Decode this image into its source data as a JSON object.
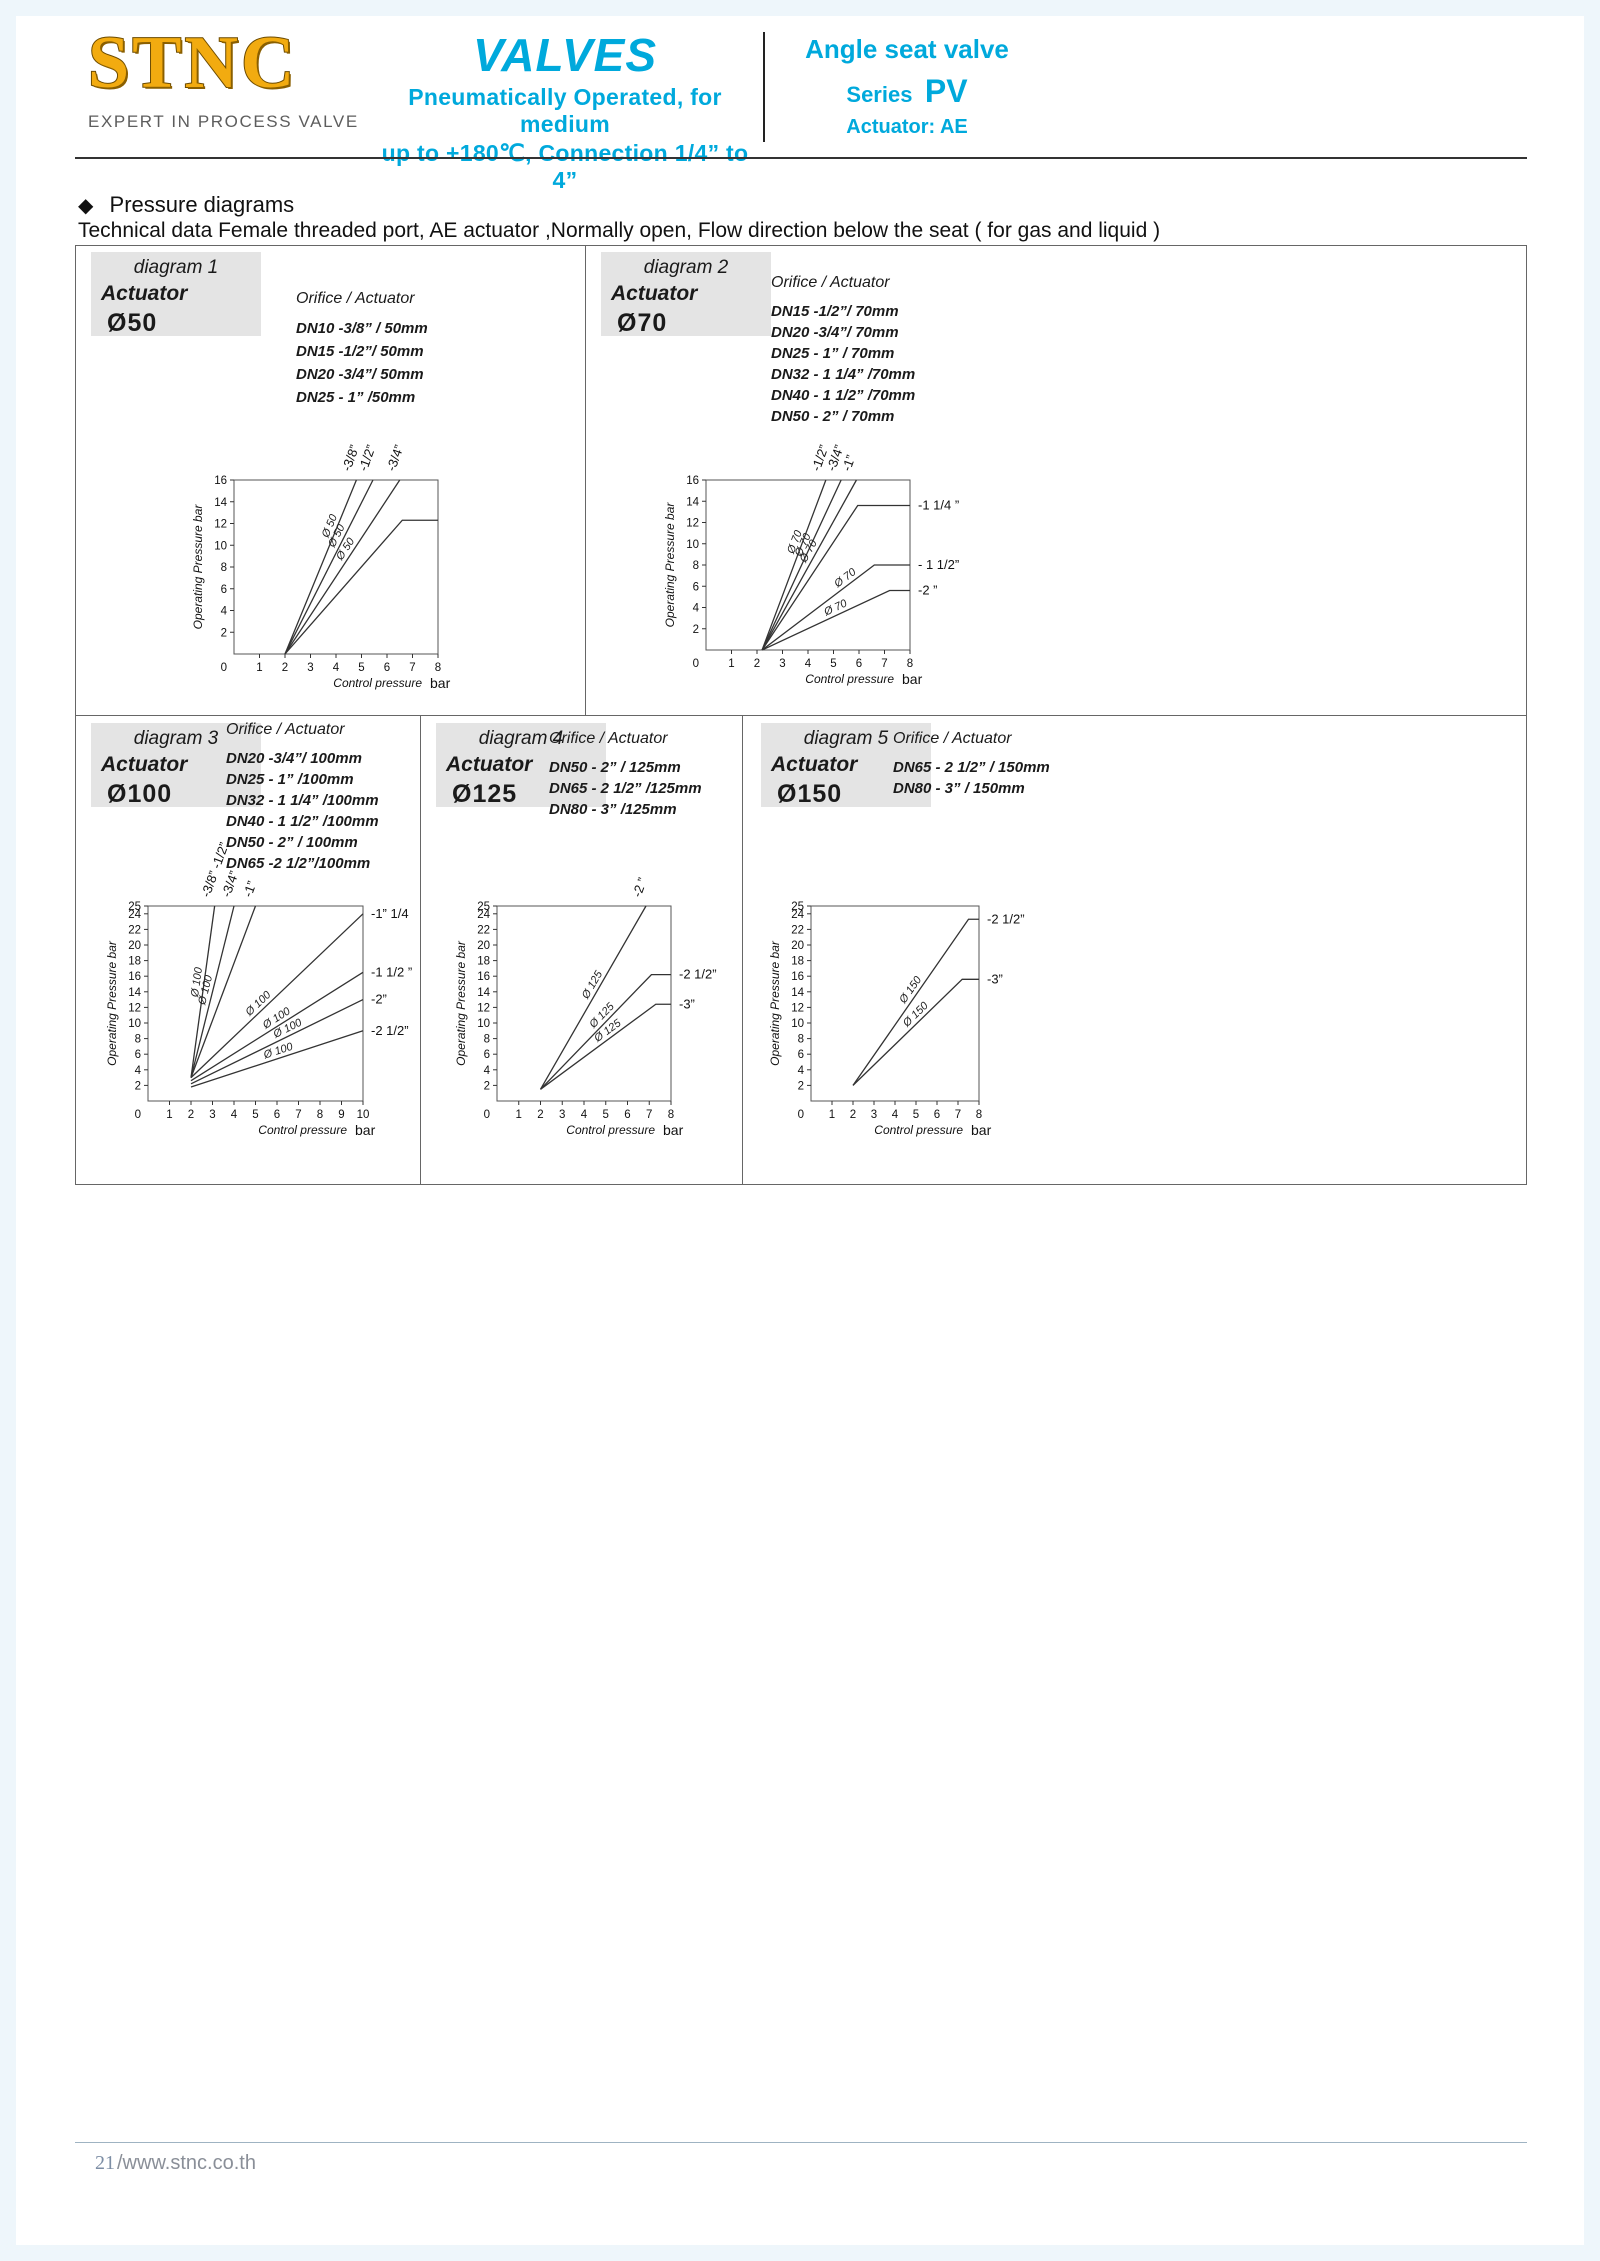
{
  "header": {
    "accent": "#00a9dc",
    "logo": {
      "text": "STNC",
      "tagline": "EXPERT IN PROCESS VALVE"
    },
    "center": {
      "title": "VALVES",
      "line1": "Pneumatically Operated, for medium",
      "line2": "up to +180℃, Connection 1/4” to 4”"
    },
    "right": {
      "line1": "Angle seat valve",
      "series_word": "Series",
      "series_code": "PV",
      "actuator": "Actuator:  AE"
    }
  },
  "section": {
    "bullet": "◆",
    "heading": "Pressure diagrams",
    "subheading": "Technical data Female threaded port, AE actuator ,Normally open, Flow direction below the seat ( for gas and liquid )"
  },
  "diagrams": [
    {
      "name": "diagram 1",
      "actuator_word": "Actuator",
      "actuator_size": "Ø50",
      "orifice_title": "Orifice / Actuator",
      "orifices": [
        "DN10 -3/8” / 50mm",
        "DN15 -1/2”/ 50mm",
        "DN20 -3/4”/ 50mm",
        "DN25 - 1” /50mm"
      ]
    },
    {
      "name": "diagram 2",
      "actuator_word": "Actuator",
      "actuator_size": "Ø70",
      "orifice_title": "Orifice / Actuator",
      "orifices": [
        "DN15 -1/2”/ 70mm",
        "DN20 -3/4”/ 70mm",
        "DN25 - 1”  / 70mm",
        "DN32 - 1 1/4” /70mm",
        "DN40 - 1 1/2” /70mm",
        "DN50 - 2”  / 70mm"
      ]
    },
    {
      "name": "diagram 3",
      "actuator_word": "Actuator",
      "actuator_size": "Ø100",
      "orifice_title": "Orifice / Actuator",
      "orifices": [
        "DN20 -3/4”/ 100mm",
        "DN25 - 1” /100mm",
        "DN32 - 1 1/4” /100mm",
        "DN40 - 1 1/2” /100mm",
        "DN50 - 2”  / 100mm",
        "DN65 -2 1/2”/100mm"
      ]
    },
    {
      "name": "diagram 4",
      "actuator_word": "Actuator",
      "actuator_size": "Ø125",
      "orifice_title": "Orifice / Actuator",
      "orifices": [
        "DN50 - 2”  / 125mm",
        "DN65 - 2 1/2” /125mm",
        "DN80 - 3” /125mm"
      ]
    },
    {
      "name": "diagram 5",
      "actuator_word": "Actuator",
      "actuator_size": "Ø150",
      "orifice_title": "Orifice / Actuator",
      "orifices": [
        "DN65 - 2 1/2” / 150mm",
        "DN80 - 3”  / 150mm"
      ]
    }
  ],
  "chart_data": [
    {
      "id": "diagram1-pressure",
      "type": "line",
      "xlabel": "Control pressure",
      "xunit": "bar",
      "ylabel": "Operating Pressure bar",
      "xlim": [
        0,
        8
      ],
      "ylim": [
        0,
        16
      ],
      "xticks": [
        1,
        2,
        3,
        4,
        5,
        6,
        7,
        8
      ],
      "yticks": [
        2,
        4,
        6,
        8,
        10,
        12,
        14,
        16
      ],
      "origin_label": "0",
      "series": [
        {
          "name": "-3/8”",
          "points": [
            [
              2,
              0
            ],
            [
              4.8,
              16
            ]
          ],
          "top_label": {
            "text": "-3/8”",
            "x": 4.55
          },
          "on_label": {
            "text": "Ø 50",
            "t": 0.72
          }
        },
        {
          "name": "-1/2”",
          "points": [
            [
              2,
              0
            ],
            [
              5.45,
              16
            ]
          ],
          "top_label": {
            "text": "-1/2”",
            "x": 5.2
          },
          "on_label": {
            "text": "Ø 50",
            "t": 0.66
          }
        },
        {
          "name": "-3/4”",
          "points": [
            [
              2,
              0
            ],
            [
              6.5,
              16
            ]
          ],
          "top_label": {
            "text": "-3/4”",
            "x": 6.3
          },
          "on_label": {
            "text": "Ø 50",
            "t": 0.58
          }
        },
        {
          "name": "-1”",
          "points": [
            [
              2,
              0
            ],
            [
              6.6,
              12.3
            ],
            [
              8,
              12.3
            ]
          ]
        }
      ]
    },
    {
      "id": "diagram2-pressure",
      "type": "line",
      "xlabel": "Control pressure",
      "xunit": "bar",
      "ylabel": "Operating Pressure bar",
      "xlim": [
        0,
        8
      ],
      "ylim": [
        0,
        16
      ],
      "xticks": [
        1,
        2,
        3,
        4,
        5,
        6,
        7,
        8
      ],
      "yticks": [
        2,
        4,
        6,
        8,
        10,
        12,
        14,
        16
      ],
      "origin_label": "0",
      "series": [
        {
          "name": "-1/2”",
          "points": [
            [
              2.2,
              0
            ],
            [
              4.7,
              16
            ]
          ],
          "top_label": {
            "text": "-1/2”",
            "x": 4.45
          },
          "on_label": {
            "text": "Ø 70",
            "t": 0.62
          }
        },
        {
          "name": "-3/4”",
          "points": [
            [
              2.2,
              0
            ],
            [
              5.3,
              16
            ]
          ],
          "top_label": {
            "text": "-3/4”",
            "x": 5.05
          },
          "on_label": {
            "text": "Ø 70",
            "t": 0.6
          }
        },
        {
          "name": "-1”",
          "points": [
            [
              2.2,
              0
            ],
            [
              5.9,
              16
            ]
          ],
          "top_label": {
            "text": "-1”",
            "x": 5.65
          },
          "on_label": {
            "text": "Ø 70",
            "t": 0.56
          }
        },
        {
          "name": "-1 1/4”",
          "points": [
            [
              2.2,
              0
            ],
            [
              5.95,
              13.6
            ],
            [
              8,
              13.6
            ]
          ],
          "right_label": {
            "text": "-1 1/4  ”",
            "y": 13.6
          }
        },
        {
          "name": "-1 1/2”",
          "points": [
            [
              2.2,
              0
            ],
            [
              6.6,
              8
            ],
            [
              8,
              8
            ]
          ],
          "right_label": {
            "text": "- 1 1/2”",
            "y": 8
          },
          "on_label": {
            "text": "Ø 70",
            "t": 0.78
          }
        },
        {
          "name": "-2”",
          "points": [
            [
              2.2,
              0
            ],
            [
              7.2,
              5.6
            ],
            [
              8,
              5.6
            ]
          ],
          "right_label": {
            "text": "-2 ”",
            "y": 5.6
          },
          "on_label": {
            "text": "Ø 70",
            "t": 0.6
          }
        }
      ]
    },
    {
      "id": "diagram3-pressure",
      "type": "line",
      "xlabel": "Control pressure",
      "xunit": "bar",
      "ylabel": "Operating Pressure  bar",
      "xlim": [
        0,
        10
      ],
      "ylim": [
        0,
        25
      ],
      "xticks": [
        1,
        2,
        3,
        4,
        5,
        6,
        7,
        8,
        9,
        10
      ],
      "yticks": [
        2,
        4,
        6,
        8,
        10,
        12,
        14,
        16,
        18,
        20,
        22,
        24,
        25
      ],
      "origin_label": "0",
      "series": [
        {
          "name": "-3/8” -1/2”",
          "points": [
            [
              2,
              3
            ],
            [
              3.1,
              25
            ]
          ],
          "top_label": {
            "text": "-3/8”  -1/2”",
            "x": 2.85
          },
          "on_label": {
            "text": "Ø 100",
            "t": 0.55
          }
        },
        {
          "name": "-3/4”",
          "points": [
            [
              2,
              3
            ],
            [
              4.0,
              25
            ]
          ],
          "top_label": {
            "text": "-3/4”",
            "x": 3.8
          },
          "on_label": {
            "text": "Ø 100",
            "t": 0.5
          }
        },
        {
          "name": "-1”",
          "points": [
            [
              2,
              3
            ],
            [
              5.0,
              25
            ]
          ],
          "top_label": {
            "text": "-1”",
            "x": 4.8
          }
        },
        {
          "name": "-1” 1/4",
          "points": [
            [
              2,
              3
            ],
            [
              10,
              24
            ]
          ],
          "right_label": {
            "text": "-1”  1/4",
            "y": 24
          },
          "on_label": {
            "text": "Ø 100",
            "t": 0.42
          }
        },
        {
          "name": "-1 1/2”",
          "points": [
            [
              2,
              2.6
            ],
            [
              10,
              16.5
            ]
          ],
          "right_label": {
            "text": "-1 1/2  ”",
            "y": 16.5
          },
          "on_label": {
            "text": "Ø 100",
            "t": 0.52
          }
        },
        {
          "name": "-2”",
          "points": [
            [
              2,
              2.2
            ],
            [
              10,
              13
            ]
          ],
          "right_label": {
            "text": "-2”",
            "y": 13
          },
          "on_label": {
            "text": "Ø 100",
            "t": 0.58
          }
        },
        {
          "name": "-2 1/2”",
          "points": [
            [
              2,
              1.8
            ],
            [
              10,
              9
            ]
          ],
          "right_label": {
            "text": "-2 1/2”",
            "y": 9
          },
          "on_label": {
            "text": "Ø 100",
            "t": 0.52
          }
        }
      ]
    },
    {
      "id": "diagram4-pressure",
      "type": "line",
      "xlabel": "Control pressure",
      "xunit": "bar",
      "ylabel": "Operating Pressure  bar",
      "xlim": [
        0,
        8
      ],
      "ylim": [
        0,
        25
      ],
      "xticks": [
        1,
        2,
        3,
        4,
        5,
        6,
        7,
        8
      ],
      "yticks": [
        2,
        4,
        6,
        8,
        10,
        12,
        14,
        16,
        18,
        20,
        22,
        24,
        25
      ],
      "origin_label": "0",
      "series": [
        {
          "name": "-2”",
          "points": [
            [
              2,
              1.5
            ],
            [
              6.85,
              25
            ]
          ],
          "top_label": {
            "text": "-2 ”",
            "x": 6.6
          },
          "on_label": {
            "text": "Ø 125",
            "t": 0.55
          }
        },
        {
          "name": "-2 1/2”",
          "points": [
            [
              2,
              1.5
            ],
            [
              7.1,
              16.2
            ],
            [
              8,
              16.2
            ]
          ],
          "right_label": {
            "text": "-2 1/2”",
            "y": 16.2
          },
          "on_label": {
            "text": "Ø 125",
            "t": 0.6
          }
        },
        {
          "name": "-3”",
          "points": [
            [
              2,
              1.5
            ],
            [
              7.3,
              12.4
            ],
            [
              8,
              12.4
            ]
          ],
          "right_label": {
            "text": "-3”",
            "y": 12.4
          },
          "on_label": {
            "text": "Ø 125",
            "t": 0.62
          }
        }
      ]
    },
    {
      "id": "diagram5-pressure",
      "type": "line",
      "xlabel": "Control pressure",
      "xunit": "bar",
      "ylabel": "Operating Pressure  bar",
      "xlim": [
        0,
        8
      ],
      "ylim": [
        0,
        25
      ],
      "xticks": [
        1,
        2,
        3,
        4,
        5,
        6,
        7,
        8
      ],
      "yticks": [
        2,
        4,
        6,
        8,
        10,
        12,
        14,
        16,
        18,
        20,
        22,
        24,
        25
      ],
      "origin_label": "0",
      "series": [
        {
          "name": "-2 1/2”",
          "points": [
            [
              2,
              2
            ],
            [
              7.5,
              23.3
            ],
            [
              8,
              23.3
            ]
          ],
          "right_label": {
            "text": "-2 1/2”",
            "y": 23.3
          },
          "on_label": {
            "text": "Ø 150",
            "t": 0.55
          }
        },
        {
          "name": "-3”",
          "points": [
            [
              2,
              2
            ],
            [
              7.2,
              15.6
            ],
            [
              8,
              15.6
            ]
          ],
          "right_label": {
            "text": "-3”",
            "y": 15.6
          },
          "on_label": {
            "text": "Ø 150",
            "t": 0.62
          }
        }
      ]
    }
  ],
  "footer": {
    "page_no": "21",
    "site": "/www.stnc.co.th"
  }
}
